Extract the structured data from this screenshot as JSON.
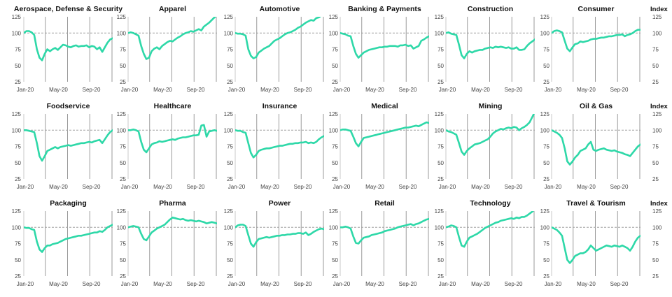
{
  "chart_data": {
    "type": "line",
    "line_color": "#2ed8a8",
    "baseline_color": "#a0a0a0",
    "gridline_color": "#9a9a9a",
    "x_tick_labels": [
      "Jan-20",
      "May-20",
      "Sep-20"
    ],
    "right_axis_label": "Index",
    "baseline_value": 100,
    "panels": [
      {
        "title": "Aerospace, Defense & Security",
        "ylim": [
          25,
          125
        ],
        "yticks": [
          25,
          50,
          75,
          100,
          125
        ],
        "values": [
          100,
          103,
          103,
          101,
          97,
          75,
          62,
          58,
          68,
          75,
          72,
          75,
          77,
          74,
          78,
          82,
          81,
          79,
          78,
          80,
          81,
          79,
          80,
          80,
          81,
          78,
          80,
          79,
          75,
          78,
          71,
          78,
          85,
          90,
          92
        ]
      },
      {
        "title": "Apparel",
        "ylim": [
          25,
          125
        ],
        "yticks": [
          25,
          50,
          75,
          100,
          125
        ],
        "values": [
          100,
          101,
          100,
          98,
          96,
          80,
          68,
          60,
          62,
          72,
          76,
          78,
          75,
          80,
          83,
          86,
          88,
          87,
          90,
          93,
          95,
          98,
          100,
          101,
          103,
          102,
          104,
          106,
          104,
          110,
          113,
          116,
          120,
          124,
          128
        ]
      },
      {
        "title": "Automotive",
        "ylim": [
          25,
          125
        ],
        "yticks": [
          25,
          50,
          75,
          100,
          125
        ],
        "values": [
          100,
          99,
          99,
          98,
          96,
          75,
          65,
          61,
          63,
          70,
          73,
          76,
          78,
          80,
          84,
          88,
          90,
          92,
          95,
          98,
          100,
          101,
          103,
          105,
          108,
          110,
          113,
          116,
          118,
          120,
          119,
          123,
          124,
          127,
          130
        ]
      },
      {
        "title": "Banking & Payments",
        "ylim": [
          25,
          125
        ],
        "yticks": [
          25,
          50,
          75,
          100,
          125
        ],
        "values": [
          100,
          99,
          98,
          96,
          95,
          80,
          68,
          62,
          66,
          70,
          72,
          74,
          75,
          76,
          77,
          78,
          78,
          79,
          79,
          80,
          80,
          80,
          79,
          81,
          81,
          82,
          80,
          81,
          76,
          78,
          80,
          88,
          90,
          93,
          95
        ]
      },
      {
        "title": "Construction",
        "ylim": [
          25,
          125
        ],
        "yticks": [
          25,
          50,
          75,
          100,
          125
        ],
        "values": [
          100,
          101,
          99,
          98,
          97,
          82,
          66,
          61,
          68,
          72,
          70,
          72,
          73,
          74,
          74,
          76,
          77,
          78,
          77,
          79,
          78,
          79,
          78,
          77,
          78,
          76,
          76,
          78,
          74,
          74,
          75,
          80,
          84,
          87,
          90
        ]
      },
      {
        "title": "Consumer",
        "ylim": [
          25,
          125
        ],
        "yticks": [
          25,
          50,
          75,
          100,
          125
        ],
        "values": [
          100,
          103,
          104,
          103,
          101,
          88,
          76,
          72,
          78,
          83,
          84,
          87,
          86,
          87,
          88,
          90,
          91,
          91,
          92,
          93,
          93,
          94,
          95,
          95,
          96,
          97,
          97,
          98,
          95,
          97,
          98,
          100,
          103,
          105,
          105
        ]
      },
      {
        "title": "Foodservice",
        "ylim": [
          25,
          125
        ],
        "yticks": [
          25,
          50,
          75,
          100,
          125
        ],
        "values": [
          100,
          100,
          99,
          98,
          97,
          80,
          60,
          53,
          60,
          68,
          70,
          72,
          74,
          72,
          74,
          75,
          76,
          77,
          76,
          77,
          78,
          79,
          80,
          80,
          81,
          82,
          81,
          83,
          84,
          85,
          80,
          86,
          92,
          97,
          100
        ]
      },
      {
        "title": "Healthcare",
        "ylim": [
          25,
          125
        ],
        "yticks": [
          25,
          50,
          75,
          100,
          125
        ],
        "values": [
          100,
          100,
          101,
          100,
          98,
          82,
          70,
          66,
          72,
          78,
          80,
          81,
          83,
          82,
          83,
          84,
          85,
          86,
          85,
          87,
          88,
          89,
          89,
          90,
          91,
          92,
          92,
          93,
          107,
          108,
          90,
          98,
          99,
          100,
          99
        ]
      },
      {
        "title": "Insurance",
        "ylim": [
          25,
          125
        ],
        "yticks": [
          25,
          50,
          75,
          100,
          125
        ],
        "values": [
          100,
          99,
          99,
          97,
          96,
          80,
          65,
          58,
          62,
          68,
          70,
          71,
          72,
          72,
          73,
          74,
          75,
          76,
          76,
          77,
          78,
          79,
          79,
          80,
          80,
          81,
          81,
          82,
          80,
          81,
          80,
          82,
          86,
          89,
          91
        ]
      },
      {
        "title": "Medical",
        "ylim": [
          25,
          125
        ],
        "yticks": [
          25,
          50,
          75,
          100,
          125
        ],
        "values": [
          100,
          101,
          101,
          100,
          99,
          90,
          80,
          75,
          82,
          88,
          89,
          90,
          91,
          92,
          93,
          94,
          95,
          96,
          97,
          98,
          99,
          100,
          101,
          102,
          103,
          104,
          104,
          105,
          106,
          107,
          106,
          108,
          110,
          112,
          111
        ]
      },
      {
        "title": "Mining",
        "ylim": [
          25,
          125
        ],
        "yticks": [
          25,
          50,
          75,
          100,
          125
        ],
        "values": [
          100,
          98,
          97,
          95,
          93,
          80,
          67,
          62,
          68,
          72,
          75,
          78,
          79,
          80,
          82,
          84,
          86,
          90,
          95,
          98,
          100,
          102,
          101,
          103,
          104,
          103,
          105,
          104,
          100,
          103,
          105,
          108,
          112,
          120,
          128
        ]
      },
      {
        "title": "Oil & Gas",
        "ylim": [
          25,
          125
        ],
        "yticks": [
          25,
          50,
          75,
          100,
          125
        ],
        "values": [
          100,
          98,
          96,
          93,
          88,
          72,
          52,
          47,
          52,
          58,
          62,
          68,
          70,
          72,
          78,
          82,
          70,
          68,
          70,
          71,
          72,
          70,
          69,
          68,
          69,
          67,
          66,
          65,
          63,
          62,
          60,
          65,
          70,
          75,
          78
        ]
      },
      {
        "title": "Packaging",
        "ylim": [
          25,
          125
        ],
        "yticks": [
          25,
          50,
          75,
          100,
          125
        ],
        "values": [
          100,
          99,
          99,
          97,
          96,
          78,
          66,
          62,
          68,
          72,
          72,
          74,
          75,
          76,
          78,
          80,
          82,
          83,
          84,
          85,
          86,
          87,
          87,
          88,
          89,
          90,
          91,
          92,
          92,
          94,
          93,
          96,
          100,
          102,
          104
        ]
      },
      {
        "title": "Pharma",
        "ylim": [
          25,
          125
        ],
        "yticks": [
          25,
          50,
          75,
          100,
          125
        ],
        "values": [
          100,
          101,
          102,
          101,
          100,
          90,
          82,
          80,
          86,
          92,
          95,
          98,
          100,
          102,
          104,
          108,
          112,
          115,
          114,
          113,
          112,
          113,
          111,
          110,
          111,
          110,
          109,
          110,
          109,
          108,
          106,
          107,
          108,
          107,
          106
        ]
      },
      {
        "title": "Power",
        "ylim": [
          25,
          125
        ],
        "yticks": [
          25,
          50,
          75,
          100,
          125
        ],
        "values": [
          100,
          103,
          104,
          104,
          102,
          88,
          75,
          70,
          77,
          82,
          83,
          84,
          85,
          84,
          85,
          86,
          87,
          87,
          88,
          88,
          89,
          89,
          90,
          90,
          91,
          91,
          90,
          92,
          88,
          90,
          93,
          95,
          97,
          98,
          97
        ]
      },
      {
        "title": "Retail",
        "ylim": [
          25,
          125
        ],
        "yticks": [
          25,
          50,
          75,
          100,
          125
        ],
        "values": [
          100,
          100,
          101,
          100,
          98,
          86,
          76,
          75,
          80,
          84,
          85,
          86,
          88,
          89,
          90,
          91,
          92,
          94,
          95,
          96,
          97,
          98,
          100,
          101,
          102,
          103,
          104,
          105,
          103,
          105,
          106,
          108,
          110,
          112,
          113
        ]
      },
      {
        "title": "Technology",
        "ylim": [
          25,
          125
        ],
        "yticks": [
          25,
          50,
          75,
          100,
          125
        ],
        "values": [
          100,
          101,
          103,
          102,
          100,
          85,
          72,
          70,
          78,
          84,
          86,
          88,
          90,
          93,
          96,
          99,
          101,
          103,
          105,
          107,
          108,
          110,
          111,
          112,
          113,
          114,
          113,
          115,
          114,
          116,
          116,
          118,
          121,
          124,
          128
        ]
      },
      {
        "title": "Travel & Tourism",
        "ylim": [
          25,
          125
        ],
        "yticks": [
          25,
          50,
          75,
          100,
          125
        ],
        "values": [
          100,
          98,
          96,
          92,
          87,
          68,
          50,
          45,
          50,
          56,
          58,
          60,
          60,
          62,
          66,
          72,
          68,
          64,
          66,
          68,
          70,
          72,
          71,
          70,
          72,
          71,
          70,
          72,
          70,
          68,
          64,
          70,
          78,
          84,
          87
        ]
      }
    ]
  }
}
